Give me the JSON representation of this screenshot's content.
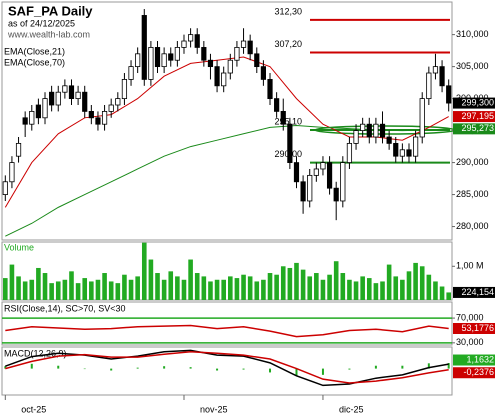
{
  "chart_data": [
    {
      "type": "candlestick",
      "title": "SAF_PA Daily",
      "subtitle": "as of 24/12/2025",
      "annotation": "www.wealth-lab.com",
      "categories": [
        "oct-25",
        null,
        null,
        null,
        null,
        null,
        null,
        null,
        null,
        null,
        null,
        null,
        null,
        null,
        null,
        null,
        null,
        null,
        null,
        null,
        null,
        null,
        null,
        null,
        null,
        null,
        null,
        "nov-25",
        null,
        null,
        null,
        null,
        null,
        null,
        null,
        null,
        null,
        null,
        null,
        null,
        null,
        null,
        null,
        null,
        null,
        null,
        null,
        null,
        "dic-25",
        null,
        null,
        null,
        null,
        null,
        null,
        null,
        null,
        null,
        null,
        null,
        null,
        null,
        null,
        null,
        null,
        null,
        null,
        null
      ],
      "open": [
        285,
        287,
        291,
        297,
        296,
        299,
        297,
        301,
        299,
        301,
        302,
        300,
        301,
        298,
        297,
        296,
        298,
        299,
        300,
        303,
        305,
        313,
        303,
        308,
        305,
        307,
        306,
        308,
        309,
        310,
        308,
        306,
        305,
        302,
        304,
        306,
        308,
        309,
        307,
        305,
        303,
        300,
        298,
        296,
        290,
        287,
        284,
        288,
        289,
        290,
        286,
        284,
        290,
        293,
        295,
        296,
        294,
        296,
        294,
        293,
        291,
        292,
        291,
        294,
        300,
        304,
        305,
        302
      ],
      "high": [
        288,
        291,
        294,
        298,
        299,
        300,
        301,
        302,
        302,
        303,
        303,
        302,
        302,
        299,
        298,
        299,
        300,
        301,
        304,
        306,
        308,
        314,
        309,
        309,
        308,
        308,
        309,
        310,
        311,
        311,
        309,
        307,
        306,
        305,
        307,
        309,
        311,
        310,
        308,
        306,
        304,
        301,
        300,
        297,
        291,
        288,
        289,
        290,
        291,
        291,
        287,
        291,
        294,
        296,
        297,
        297,
        297,
        298,
        295,
        294,
        293,
        293,
        295,
        301,
        305,
        307,
        306,
        303
      ],
      "low": [
        284,
        286,
        290,
        294,
        295,
        296,
        296,
        298,
        298,
        300,
        299,
        299,
        297,
        296,
        295,
        295,
        297,
        298,
        299,
        302,
        304,
        302,
        302,
        304,
        304,
        305,
        305,
        307,
        308,
        307,
        305,
        303,
        301,
        301,
        303,
        305,
        307,
        306,
        304,
        302,
        299,
        297,
        295,
        289,
        286,
        282,
        283,
        287,
        288,
        285,
        281,
        283,
        289,
        292,
        294,
        293,
        293,
        293,
        292,
        290,
        290,
        290,
        290,
        293,
        299,
        303,
        301,
        298
      ],
      "close": [
        287,
        290,
        293,
        296,
        298,
        297,
        300,
        299,
        301,
        302,
        300,
        301,
        298,
        297,
        296,
        298,
        299,
        300,
        303,
        305,
        307,
        303,
        308,
        305,
        307,
        306,
        308,
        309,
        310,
        308,
        306,
        305,
        302,
        304,
        306,
        308,
        309,
        307,
        305,
        303,
        300,
        298,
        296,
        290,
        287,
        284,
        288,
        289,
        290,
        286,
        284,
        290,
        293,
        295,
        296,
        294,
        296,
        294,
        293,
        291,
        292,
        291,
        294,
        300,
        304,
        305,
        302,
        299.3
      ],
      "close_label": "299,300",
      "series": [
        {
          "name": "EMA(Close,21)",
          "color": "#cc0000",
          "x": [
            0,
            4,
            8,
            12,
            16,
            20,
            24,
            28,
            32,
            36,
            40,
            44,
            48,
            52,
            56,
            60,
            64,
            67
          ],
          "values": [
            283,
            290,
            294.5,
            297,
            297.5,
            300,
            303.5,
            305.5,
            306,
            306.5,
            305,
            300,
            296,
            294,
            294,
            293.5,
            295.5,
            297.195
          ],
          "last_label": "297,195"
        },
        {
          "name": "EMA(Close,70)",
          "color": "#1a8a1a",
          "x": [
            0,
            4,
            8,
            12,
            16,
            20,
            24,
            28,
            32,
            36,
            40,
            44,
            48,
            52,
            56,
            60,
            64,
            67
          ],
          "values": [
            278.5,
            280.5,
            283,
            285,
            287,
            289,
            291,
            292.5,
            293.5,
            294.5,
            295.5,
            295.8,
            295.5,
            295.3,
            295.1,
            295,
            295.1,
            295.273
          ],
          "last_label": "295,273"
        }
      ],
      "levels": [
        {
          "value": 312.3,
          "label": "312,30",
          "color": "#cc0000"
        },
        {
          "value": 307.2,
          "label": "307,20",
          "color": "#cc0000"
        },
        {
          "value": 295.1,
          "label": "295,10",
          "color": "#1a8a1a"
        },
        {
          "value": 290.0,
          "label": "290,00",
          "color": "#1a8a1a"
        }
      ],
      "ylim": [
        277.9,
        315.1
      ],
      "yticks": [
        {
          "value": 310,
          "label": "310,000"
        },
        {
          "value": 305,
          "label": "305,000"
        },
        {
          "value": 300,
          "label": "300,000"
        },
        {
          "value": 295,
          "label": "295,000"
        },
        {
          "value": 290,
          "label": "290,000"
        },
        {
          "value": 285,
          "label": "285,000"
        },
        {
          "value": 280,
          "label": "280,000"
        }
      ]
    },
    {
      "type": "bar",
      "title": "Volume",
      "color": "#22aa22",
      "values": [
        650000,
        1050000,
        700000,
        550000,
        600000,
        950000,
        800000,
        500000,
        550000,
        600000,
        850000,
        500000,
        650000,
        550000,
        600000,
        800000,
        550000,
        500000,
        750000,
        600000,
        700000,
        1700000,
        1200000,
        800000,
        600000,
        850000,
        700000,
        600000,
        1200000,
        800000,
        700000,
        550000,
        600000,
        600000,
        700000,
        650000,
        750000,
        700000,
        550000,
        600000,
        800000,
        750000,
        1000000,
        950000,
        1100000,
        900000,
        700000,
        800000,
        600000,
        750000,
        1150000,
        800000,
        600000,
        550000,
        700000,
        650000,
        500000,
        550000,
        1050000,
        700000,
        600000,
        850000,
        1100000,
        1000000,
        750000,
        550000,
        400000,
        224154
      ],
      "last_label": "224,154",
      "ylim": [
        0,
        1720000
      ],
      "yticks": [
        {
          "value": 1000000,
          "label": "1,00 M"
        }
      ]
    },
    {
      "type": "line",
      "title": "RSI(Close,14), SC>70, SV<30",
      "x": [
        0,
        4,
        8,
        12,
        16,
        20,
        24,
        28,
        32,
        36,
        40,
        44,
        48,
        52,
        56,
        60,
        64,
        67
      ],
      "series": [
        {
          "color": "#cc0000",
          "values": [
            50,
            56,
            54,
            52,
            53,
            56,
            57,
            58,
            53,
            56,
            49,
            40,
            43,
            50,
            52,
            48,
            57,
            53.1776
          ],
          "last_label": "53,1776"
        }
      ],
      "ylim": [
        26.5,
        96
      ],
      "yticks": [
        {
          "value": 70,
          "label": "70,000"
        },
        {
          "value": 30,
          "label": "30,000"
        }
      ],
      "grid_color": "#22aa22"
    },
    {
      "type": "line",
      "title": "MACD(12,26,9)",
      "x": [
        0,
        4,
        8,
        12,
        16,
        20,
        24,
        28,
        32,
        36,
        40,
        44,
        48,
        52,
        56,
        60,
        64,
        67
      ],
      "series": [
        {
          "color": "#000000",
          "values": [
            0.5,
            2.5,
            3.2,
            2.8,
            2,
            2.6,
            3.5,
            3.8,
            2.8,
            2.6,
            1.2,
            -1.5,
            -3.5,
            -3.2,
            -2,
            -1.3,
            0.2,
            0.9256
          ]
        },
        {
          "color": "#cc0000",
          "values": [
            0,
            1.5,
            2.6,
            2.9,
            2.4,
            2.4,
            3,
            3.5,
            3.2,
            2.8,
            2,
            0,
            -2.2,
            -3,
            -2.6,
            -1.9,
            -0.9,
            -0.2376
          ],
          "last_label": "-0,2376"
        }
      ],
      "histogram": {
        "color": "#22aa22",
        "values": [
          0.5,
          1,
          0.6,
          -0.1,
          -0.4,
          0.2,
          0.5,
          0.3,
          -0.4,
          -0.2,
          -0.8,
          -1.5,
          -1.3,
          -0.2,
          0.6,
          0.6,
          1.1,
          1.1632
        ],
        "last_label": "1,1632"
      },
      "ylim": [
        -5.5,
        4.5
      ]
    }
  ]
}
